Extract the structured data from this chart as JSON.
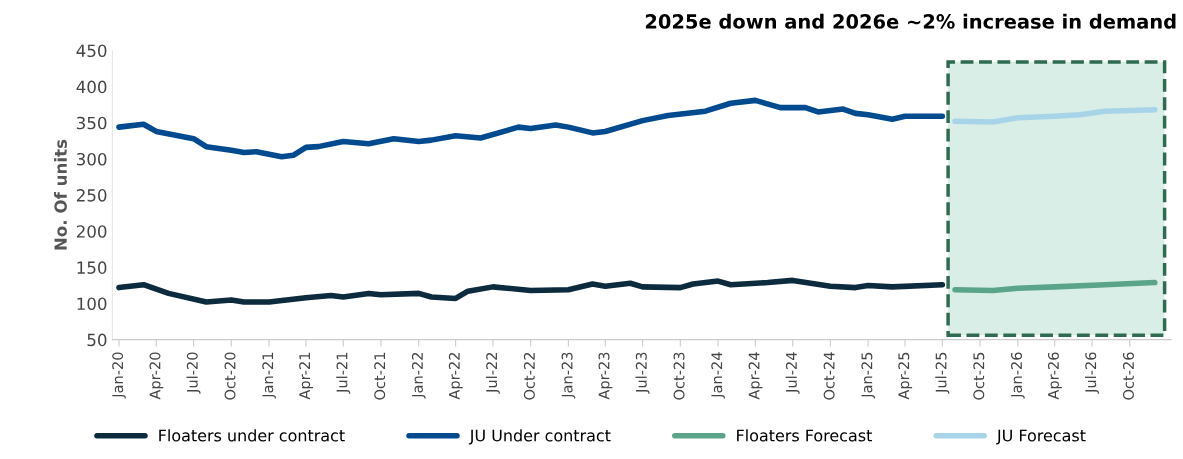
{
  "chart_data": {
    "type": "line",
    "title": "2025e down and 2026e ~2% increase in demand",
    "ylabel": "No. Of units",
    "series": [
      {
        "name": "Floaters under contract",
        "color": "#0d2b3e",
        "x": [
          "2020-01",
          "2020-03",
          "2020-05",
          "2020-08",
          "2020-10",
          "2020-11",
          "2021-01",
          "2021-04",
          "2021-06",
          "2021-07",
          "2021-09",
          "2021-10",
          "2022-01",
          "2022-02",
          "2022-04",
          "2022-05",
          "2022-07",
          "2022-10",
          "2023-01",
          "2023-03",
          "2023-04",
          "2023-06",
          "2023-07",
          "2023-10",
          "2023-11",
          "2024-01",
          "2024-02",
          "2024-05",
          "2024-07",
          "2024-10",
          "2024-12",
          "2025-01",
          "2025-03",
          "2025-07"
        ],
        "values": [
          122,
          126,
          114,
          102,
          105,
          102,
          102,
          108,
          111,
          109,
          114,
          112,
          114,
          109,
          107,
          117,
          123,
          118,
          119,
          127,
          124,
          128,
          123,
          122,
          127,
          131,
          126,
          129,
          132,
          124,
          122,
          125,
          123,
          126
        ]
      },
      {
        "name": "JU Under contract",
        "color": "#004a8f",
        "x": [
          "2020-01",
          "2020-03",
          "2020-04",
          "2020-07",
          "2020-08",
          "2020-10",
          "2020-11",
          "2020-12",
          "2021-02",
          "2021-03",
          "2021-04",
          "2021-05",
          "2021-07",
          "2021-09",
          "2021-11",
          "2022-01",
          "2022-02",
          "2022-04",
          "2022-06",
          "2022-09",
          "2022-10",
          "2022-12",
          "2023-01",
          "2023-03",
          "2023-04",
          "2023-07",
          "2023-09",
          "2023-12",
          "2024-02",
          "2024-04",
          "2024-06",
          "2024-08",
          "2024-09",
          "2024-11",
          "2024-12",
          "2025-01",
          "2025-03",
          "2025-04",
          "2025-07"
        ],
        "values": [
          344,
          348,
          338,
          328,
          317,
          312,
          309,
          310,
          303,
          305,
          316,
          317,
          324,
          321,
          328,
          324,
          326,
          332,
          329,
          344,
          342,
          347,
          344,
          336,
          338,
          353,
          360,
          366,
          377,
          381,
          371,
          371,
          365,
          369,
          363,
          361,
          355,
          359,
          359
        ]
      },
      {
        "name": "Floaters Forecast",
        "color": "#5aa58a",
        "x": [
          "2025-08",
          "2025-11",
          "2026-01",
          "2026-04",
          "2026-08",
          "2026-12"
        ],
        "values": [
          119,
          118,
          121,
          123,
          126,
          129
        ]
      },
      {
        "name": "JU Forecast",
        "color": "#a8d4ea",
        "x": [
          "2025-08",
          "2025-11",
          "2026-01",
          "2026-04",
          "2026-06",
          "2026-08",
          "2026-12"
        ],
        "values": [
          352,
          351,
          357,
          359,
          361,
          366,
          368
        ]
      }
    ],
    "xlim": [
      "2019-12-16",
      "2027-01-10"
    ],
    "xticks": [
      {
        "value": "2020-01",
        "label": "Jan-20"
      },
      {
        "value": "2020-04",
        "label": "Apr-20"
      },
      {
        "value": "2020-07",
        "label": "Jul-20"
      },
      {
        "value": "2020-10",
        "label": "Oct-20"
      },
      {
        "value": "2021-01",
        "label": "Jan-21"
      },
      {
        "value": "2021-04",
        "label": "Apr-21"
      },
      {
        "value": "2021-07",
        "label": "Jul-21"
      },
      {
        "value": "2021-10",
        "label": "Oct-21"
      },
      {
        "value": "2022-01",
        "label": "Jan-22"
      },
      {
        "value": "2022-04",
        "label": "Apr-22"
      },
      {
        "value": "2022-07",
        "label": "Jul-22"
      },
      {
        "value": "2022-10",
        "label": "Oct-22"
      },
      {
        "value": "2023-01",
        "label": "Jan-23"
      },
      {
        "value": "2023-04",
        "label": "Apr-23"
      },
      {
        "value": "2023-07",
        "label": "Jul-23"
      },
      {
        "value": "2023-10",
        "label": "Oct-23"
      },
      {
        "value": "2024-01",
        "label": "Jan-24"
      },
      {
        "value": "2024-04",
        "label": "Apr-24"
      },
      {
        "value": "2024-07",
        "label": "Jul-24"
      },
      {
        "value": "2024-10",
        "label": "Oct-24"
      },
      {
        "value": "2025-01",
        "label": "Jan-25"
      },
      {
        "value": "2025-04",
        "label": "Apr-25"
      },
      {
        "value": "2025-07",
        "label": "Jul-25"
      },
      {
        "value": "2025-10",
        "label": "Oct-25"
      },
      {
        "value": "2026-01",
        "label": "Jan-26"
      },
      {
        "value": "2026-04",
        "label": "Apr-26"
      },
      {
        "value": "2026-07",
        "label": "Jul-26"
      },
      {
        "value": "2026-10",
        "label": "Oct-26"
      }
    ],
    "ylim": [
      50,
      450
    ],
    "yticks": [
      50,
      100,
      150,
      200,
      250,
      300,
      350,
      400,
      450
    ],
    "bands": [
      {
        "axis": "x",
        "from": "2025-07-15",
        "to": "2026-12-25",
        "color": "#d9eee6"
      }
    ],
    "grid": false,
    "legend": "bottom",
    "line_style": "solid",
    "marker": "none"
  }
}
